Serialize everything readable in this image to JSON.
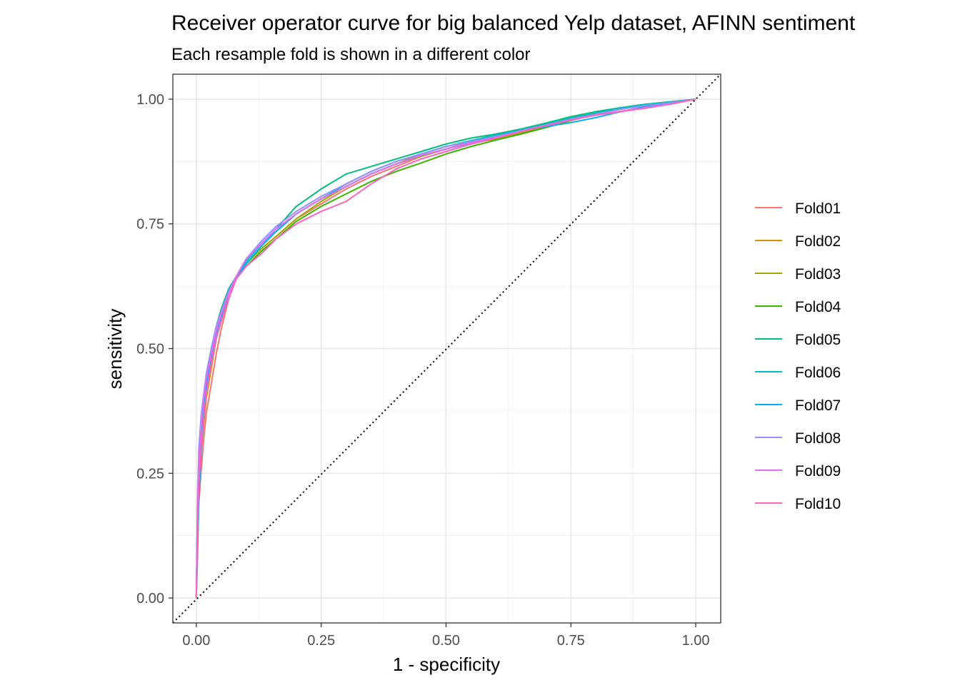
{
  "chart_data": {
    "type": "line",
    "title": "Receiver operator curve for big balanced Yelp dataset, AFINN sentiment",
    "subtitle": "Each resample fold is shown in a different color",
    "xlabel": "1 - specificity",
    "ylabel": "sensitivity",
    "xlim": [
      -0.047,
      1.05
    ],
    "ylim": [
      -0.05,
      1.05
    ],
    "x_ticks": [
      "0.00",
      "0.25",
      "0.50",
      "0.75",
      "1.00"
    ],
    "y_ticks": [
      "0.00",
      "0.25",
      "0.50",
      "0.75",
      "1.00"
    ],
    "grid": true,
    "legend_position": "right",
    "reference_line": {
      "style": "dotted",
      "x": [
        -0.047,
        1.05
      ],
      "y": [
        -0.05,
        1.05
      ]
    },
    "series": [
      {
        "name": "Fold01",
        "color": "#F8766D",
        "x": [
          0,
          0.002,
          0.005,
          0.01,
          0.015,
          0.02,
          0.03,
          0.04,
          0.05,
          0.065,
          0.08,
          0.1,
          0.13,
          0.16,
          0.2,
          0.25,
          0.3,
          0.35,
          0.4,
          0.45,
          0.5,
          0.55,
          0.6,
          0.65,
          0.7,
          0.75,
          0.8,
          0.85,
          0.9,
          0.95,
          1
        ],
        "y": [
          0,
          0.1,
          0.19,
          0.26,
          0.32,
          0.37,
          0.43,
          0.49,
          0.54,
          0.6,
          0.64,
          0.67,
          0.7,
          0.725,
          0.76,
          0.79,
          0.82,
          0.845,
          0.865,
          0.885,
          0.9,
          0.915,
          0.93,
          0.94,
          0.95,
          0.962,
          0.975,
          0.982,
          0.987,
          0.993,
          1
        ]
      },
      {
        "name": "Fold02",
        "color": "#D89000",
        "x": [
          0,
          0.002,
          0.005,
          0.01,
          0.015,
          0.02,
          0.03,
          0.04,
          0.05,
          0.065,
          0.08,
          0.1,
          0.13,
          0.16,
          0.2,
          0.25,
          0.3,
          0.35,
          0.4,
          0.45,
          0.5,
          0.55,
          0.6,
          0.65,
          0.7,
          0.75,
          0.8,
          0.85,
          0.9,
          0.95,
          1
        ],
        "y": [
          0,
          0.12,
          0.22,
          0.3,
          0.35,
          0.4,
          0.46,
          0.52,
          0.56,
          0.61,
          0.645,
          0.68,
          0.71,
          0.735,
          0.77,
          0.8,
          0.825,
          0.85,
          0.87,
          0.89,
          0.905,
          0.915,
          0.925,
          0.937,
          0.948,
          0.96,
          0.972,
          0.98,
          0.987,
          0.993,
          1
        ]
      },
      {
        "name": "Fold03",
        "color": "#A3A500",
        "x": [
          0,
          0.002,
          0.005,
          0.01,
          0.015,
          0.02,
          0.03,
          0.04,
          0.05,
          0.065,
          0.08,
          0.1,
          0.13,
          0.16,
          0.2,
          0.25,
          0.3,
          0.35,
          0.4,
          0.45,
          0.5,
          0.55,
          0.6,
          0.65,
          0.7,
          0.75,
          0.8,
          0.85,
          0.9,
          0.95,
          1
        ],
        "y": [
          0,
          0.13,
          0.24,
          0.32,
          0.37,
          0.42,
          0.48,
          0.535,
          0.57,
          0.615,
          0.64,
          0.67,
          0.7,
          0.725,
          0.76,
          0.795,
          0.825,
          0.85,
          0.87,
          0.885,
          0.9,
          0.912,
          0.92,
          0.932,
          0.945,
          0.958,
          0.97,
          0.98,
          0.987,
          0.993,
          1
        ]
      },
      {
        "name": "Fold04",
        "color": "#39B600",
        "x": [
          0,
          0.002,
          0.005,
          0.01,
          0.015,
          0.02,
          0.03,
          0.04,
          0.05,
          0.065,
          0.08,
          0.1,
          0.13,
          0.16,
          0.2,
          0.25,
          0.3,
          0.35,
          0.4,
          0.45,
          0.5,
          0.55,
          0.6,
          0.65,
          0.7,
          0.75,
          0.8,
          0.85,
          0.9,
          0.95,
          1
        ],
        "y": [
          0,
          0.14,
          0.25,
          0.33,
          0.38,
          0.43,
          0.49,
          0.54,
          0.575,
          0.615,
          0.64,
          0.665,
          0.695,
          0.72,
          0.755,
          0.785,
          0.81,
          0.835,
          0.855,
          0.872,
          0.89,
          0.905,
          0.918,
          0.93,
          0.943,
          0.957,
          0.97,
          0.98,
          0.988,
          0.994,
          1
        ]
      },
      {
        "name": "Fold05",
        "color": "#00BF7D",
        "x": [
          0,
          0.002,
          0.005,
          0.01,
          0.015,
          0.02,
          0.03,
          0.04,
          0.05,
          0.065,
          0.08,
          0.1,
          0.13,
          0.16,
          0.2,
          0.25,
          0.3,
          0.35,
          0.4,
          0.45,
          0.5,
          0.55,
          0.6,
          0.65,
          0.7,
          0.75,
          0.8,
          0.85,
          0.9,
          0.95,
          1
        ],
        "y": [
          0,
          0.14,
          0.26,
          0.34,
          0.39,
          0.44,
          0.5,
          0.545,
          0.58,
          0.62,
          0.645,
          0.675,
          0.71,
          0.74,
          0.785,
          0.82,
          0.85,
          0.865,
          0.88,
          0.895,
          0.91,
          0.922,
          0.93,
          0.94,
          0.952,
          0.965,
          0.975,
          0.983,
          0.99,
          0.995,
          1
        ]
      },
      {
        "name": "Fold06",
        "color": "#00BFC4",
        "x": [
          0,
          0.002,
          0.005,
          0.01,
          0.015,
          0.02,
          0.03,
          0.04,
          0.05,
          0.065,
          0.08,
          0.1,
          0.13,
          0.16,
          0.2,
          0.25,
          0.3,
          0.35,
          0.4,
          0.45,
          0.5,
          0.55,
          0.6,
          0.65,
          0.7,
          0.75,
          0.8,
          0.85,
          0.9,
          0.95,
          1
        ],
        "y": [
          0,
          0.13,
          0.25,
          0.33,
          0.38,
          0.43,
          0.49,
          0.54,
          0.575,
          0.615,
          0.645,
          0.675,
          0.71,
          0.735,
          0.77,
          0.8,
          0.83,
          0.855,
          0.875,
          0.89,
          0.905,
          0.917,
          0.928,
          0.938,
          0.95,
          0.962,
          0.972,
          0.982,
          0.989,
          0.994,
          1
        ]
      },
      {
        "name": "Fold07",
        "color": "#00B0F6",
        "x": [
          0,
          0.002,
          0.005,
          0.01,
          0.015,
          0.02,
          0.03,
          0.04,
          0.05,
          0.065,
          0.08,
          0.1,
          0.13,
          0.16,
          0.2,
          0.25,
          0.3,
          0.35,
          0.4,
          0.45,
          0.5,
          0.55,
          0.6,
          0.65,
          0.7,
          0.75,
          0.8,
          0.85,
          0.9,
          0.95,
          1
        ],
        "y": [
          0,
          0.07,
          0.2,
          0.3,
          0.36,
          0.42,
          0.48,
          0.53,
          0.565,
          0.61,
          0.64,
          0.67,
          0.705,
          0.735,
          0.77,
          0.8,
          0.825,
          0.85,
          0.87,
          0.887,
          0.9,
          0.912,
          0.925,
          0.937,
          0.945,
          0.953,
          0.963,
          0.975,
          0.985,
          0.993,
          1
        ]
      },
      {
        "name": "Fold08",
        "color": "#9590FF",
        "x": [
          0,
          0.002,
          0.005,
          0.01,
          0.015,
          0.02,
          0.03,
          0.04,
          0.05,
          0.065,
          0.08,
          0.1,
          0.13,
          0.16,
          0.2,
          0.25,
          0.3,
          0.35,
          0.4,
          0.45,
          0.5,
          0.55,
          0.6,
          0.65,
          0.7,
          0.75,
          0.8,
          0.85,
          0.9,
          0.95,
          1
        ],
        "y": [
          0,
          0.18,
          0.3,
          0.37,
          0.41,
          0.45,
          0.5,
          0.545,
          0.575,
          0.615,
          0.645,
          0.68,
          0.715,
          0.745,
          0.775,
          0.805,
          0.83,
          0.855,
          0.875,
          0.89,
          0.905,
          0.915,
          0.925,
          0.937,
          0.948,
          0.96,
          0.97,
          0.98,
          0.987,
          0.993,
          1
        ]
      },
      {
        "name": "Fold09",
        "color": "#E76BF3",
        "x": [
          0,
          0.002,
          0.005,
          0.01,
          0.015,
          0.02,
          0.03,
          0.04,
          0.05,
          0.065,
          0.08,
          0.1,
          0.13,
          0.16,
          0.2,
          0.25,
          0.3,
          0.35,
          0.4,
          0.45,
          0.5,
          0.55,
          0.6,
          0.65,
          0.7,
          0.75,
          0.8,
          0.85,
          0.9,
          0.95,
          1
        ],
        "y": [
          0,
          0.15,
          0.27,
          0.35,
          0.4,
          0.44,
          0.49,
          0.535,
          0.57,
          0.61,
          0.645,
          0.68,
          0.71,
          0.74,
          0.77,
          0.8,
          0.825,
          0.85,
          0.87,
          0.887,
          0.9,
          0.913,
          0.923,
          0.935,
          0.947,
          0.958,
          0.968,
          0.976,
          0.983,
          0.99,
          1
        ]
      },
      {
        "name": "Fold10",
        "color": "#FF62BC",
        "x": [
          0,
          0.002,
          0.005,
          0.01,
          0.015,
          0.02,
          0.03,
          0.04,
          0.05,
          0.065,
          0.08,
          0.1,
          0.13,
          0.16,
          0.2,
          0.25,
          0.3,
          0.35,
          0.4,
          0.45,
          0.5,
          0.55,
          0.6,
          0.65,
          0.7,
          0.75,
          0.8,
          0.85,
          0.9,
          0.95,
          1
        ],
        "y": [
          0,
          0.12,
          0.23,
          0.31,
          0.36,
          0.41,
          0.47,
          0.52,
          0.555,
          0.6,
          0.64,
          0.665,
          0.69,
          0.72,
          0.75,
          0.775,
          0.795,
          0.83,
          0.86,
          0.88,
          0.895,
          0.91,
          0.922,
          0.935,
          0.947,
          0.958,
          0.968,
          0.975,
          0.982,
          0.99,
          1
        ]
      }
    ]
  }
}
